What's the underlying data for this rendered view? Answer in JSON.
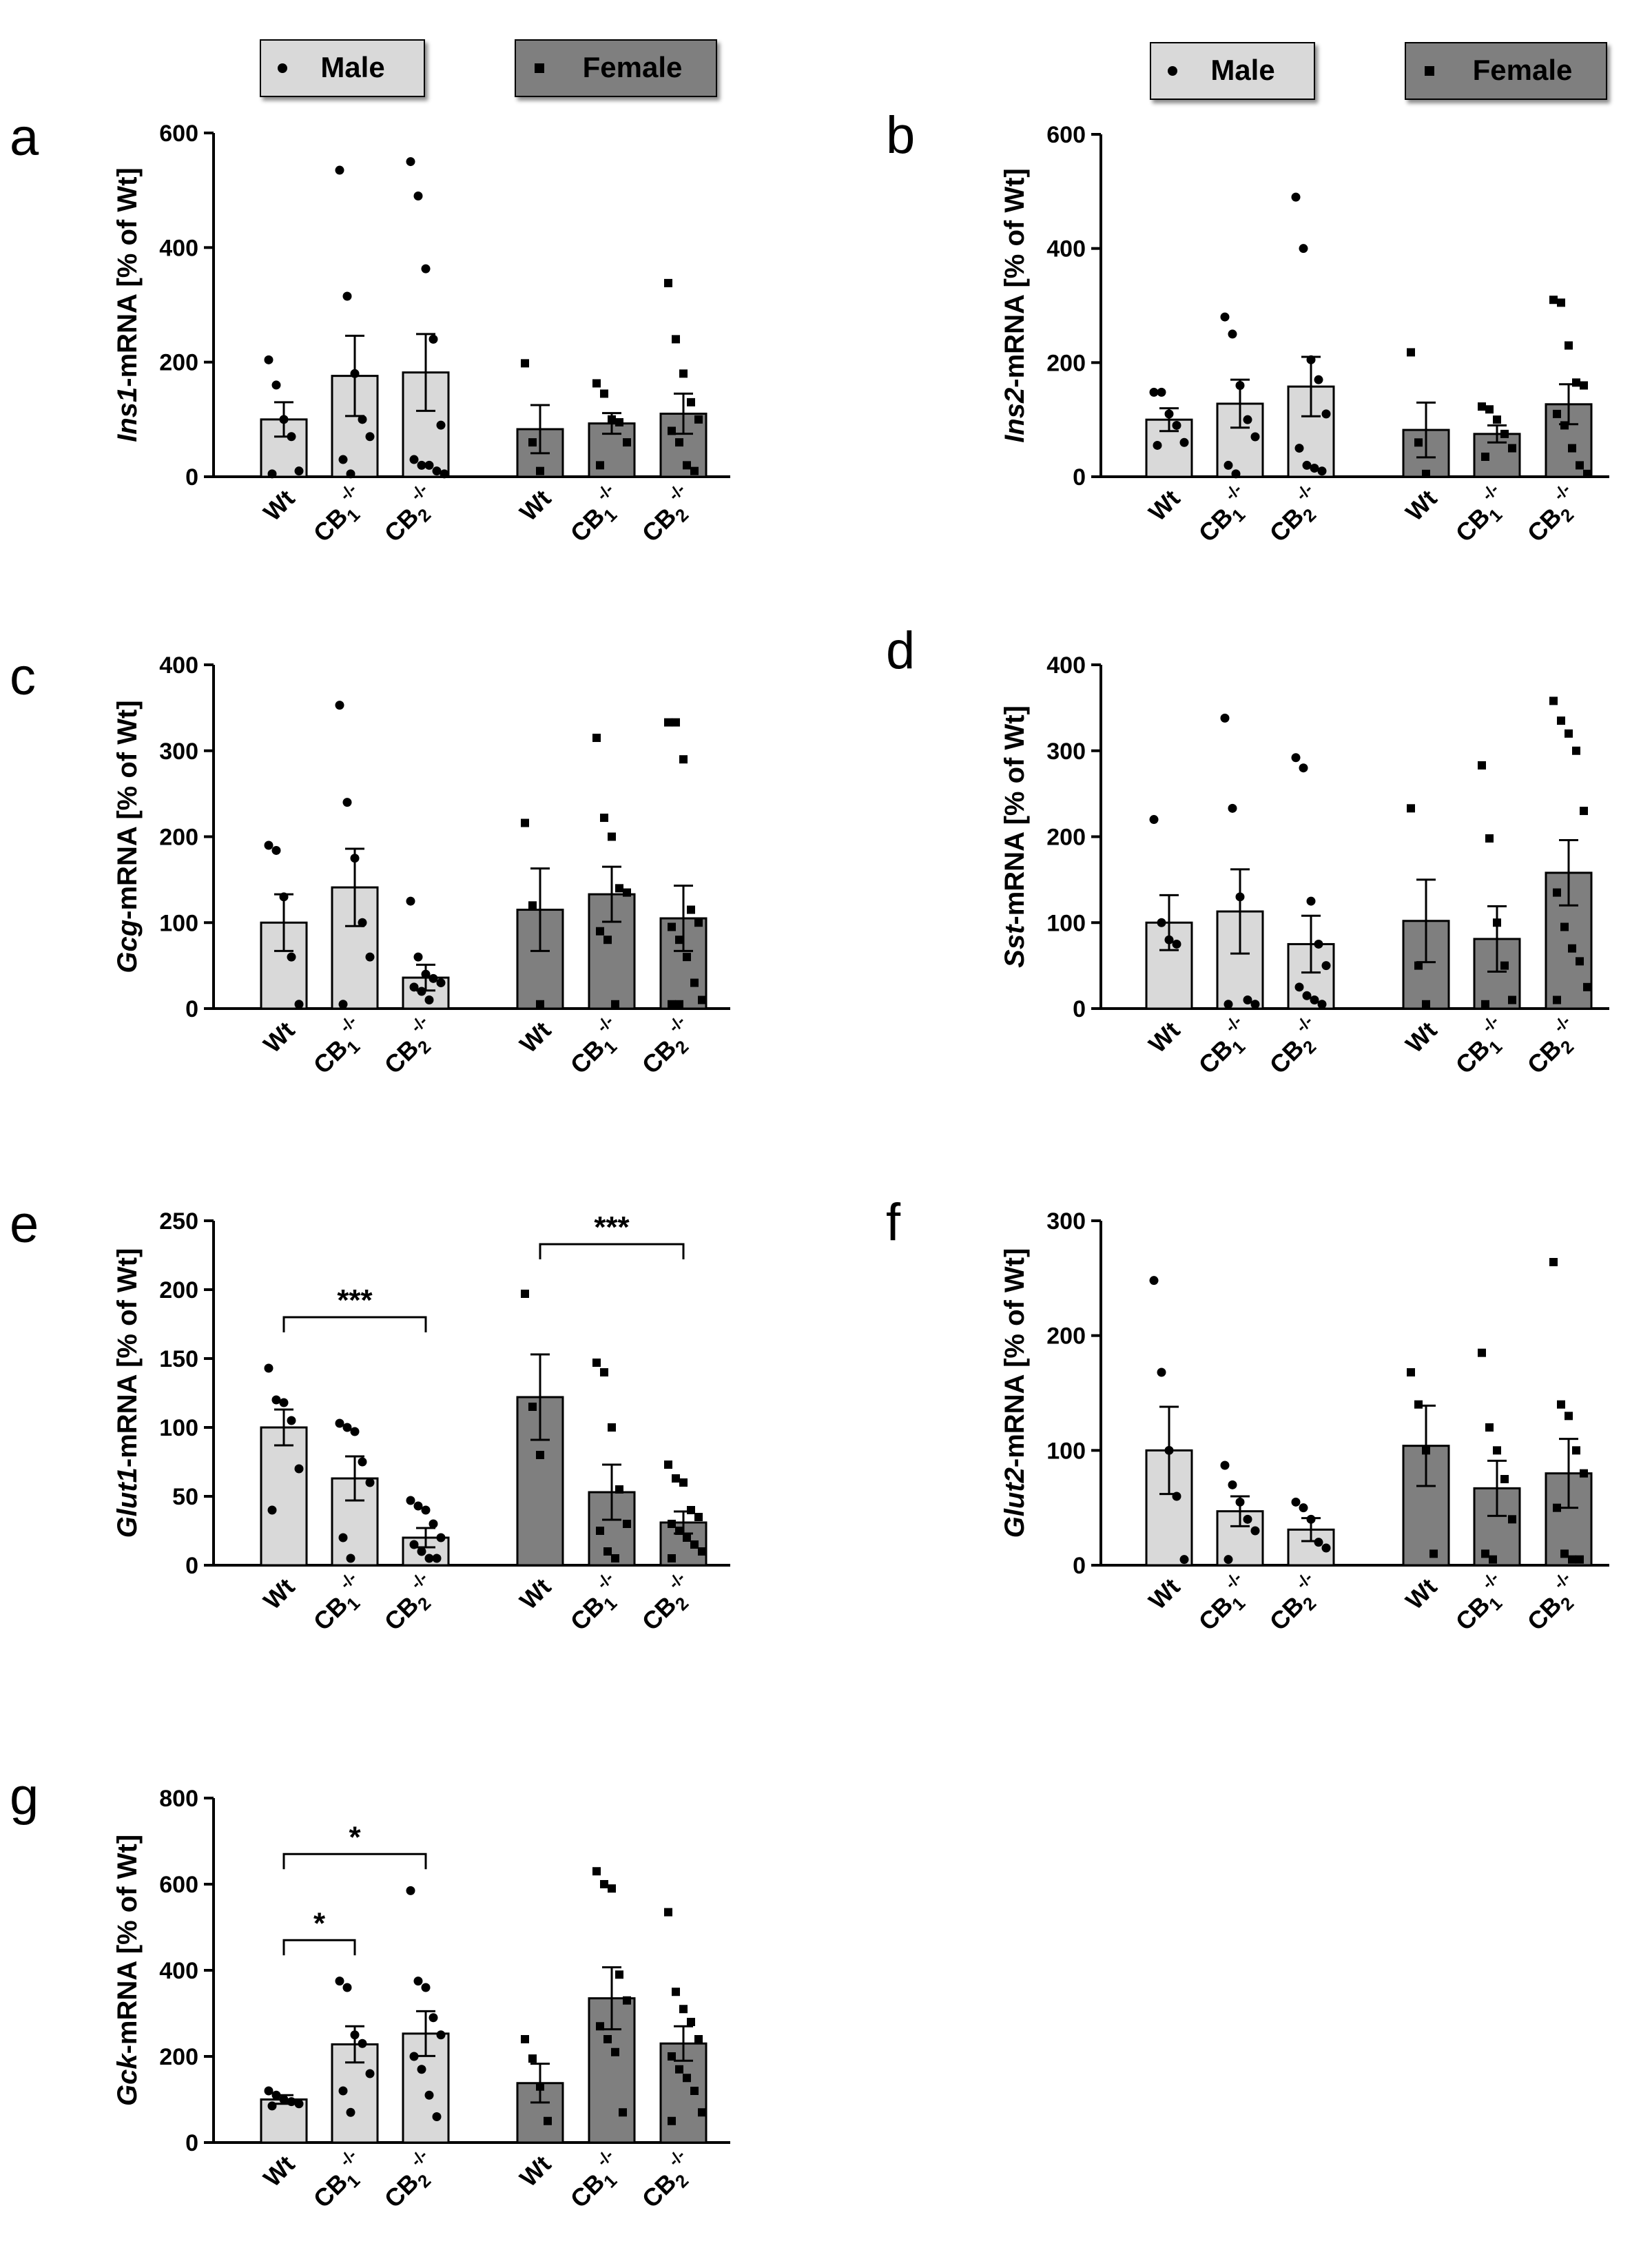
{
  "legends": [
    {
      "male_label": "Male",
      "female_label": "Female",
      "male_color": "#d9d9d9",
      "female_color": "#7f7f7f"
    },
    {
      "male_label": "Male",
      "female_label": "Female",
      "male_color": "#d9d9d9",
      "female_color": "#7f7f7f"
    }
  ],
  "colors": {
    "male_bar": "#d9d9d9",
    "female_bar": "#7f7f7f",
    "axis": "#000000",
    "point": "#000000"
  },
  "chart_data": [
    {
      "panel": "a",
      "type": "bar",
      "ylabel_italic": "Ins1",
      "ylabel_rest": "-mRNA [% of Wt]",
      "ylim": [
        0,
        600
      ],
      "yticks": [
        "0",
        "200",
        "400",
        "600"
      ],
      "categories": [
        "Wt",
        "CB1-/-",
        "CB2-/-"
      ],
      "series": [
        {
          "name": "Male",
          "values": [
            100,
            176,
            182
          ],
          "sem": [
            30,
            70,
            67
          ],
          "points": [
            [
              204,
              160,
              100,
              70,
              10,
              5
            ],
            [
              535,
              315,
              180,
              100,
              70,
              30,
              5
            ],
            [
              550,
              490,
              363,
              240,
              90,
              30,
              20,
              20,
              10,
              5
            ]
          ]
        },
        {
          "name": "Female",
          "values": [
            83,
            93,
            110
          ],
          "sem": [
            42,
            18,
            35
          ],
          "points": [
            [
              198,
              60,
              10
            ],
            [
              163,
              145,
              100,
              95,
              60,
              20
            ],
            [
              338,
              240,
              180,
              130,
              100,
              80,
              60,
              20,
              10
            ]
          ]
        }
      ],
      "significance": []
    },
    {
      "panel": "b",
      "type": "bar",
      "ylabel_italic": "Ins2",
      "ylabel_rest": "-mRNA [% of Wt]",
      "ylim": [
        0,
        600
      ],
      "yticks": [
        "0",
        "200",
        "400",
        "600"
      ],
      "categories": [
        "Wt",
        "CB1-/-",
        "CB2-/-"
      ],
      "series": [
        {
          "name": "Male",
          "values": [
            100,
            128,
            158
          ],
          "sem": [
            20,
            42,
            52
          ],
          "points": [
            [
              148,
              148,
              110,
              90,
              60,
              55
            ],
            [
              280,
              250,
              160,
              100,
              70,
              20,
              5
            ],
            [
              490,
              400,
              205,
              170,
              110,
              50,
              20,
              15,
              10
            ]
          ]
        },
        {
          "name": "Female",
          "values": [
            82,
            75,
            127
          ],
          "sem": [
            48,
            15,
            35
          ],
          "points": [
            [
              218,
              60,
              5
            ],
            [
              123,
              118,
              100,
              75,
              50,
              35
            ],
            [
              310,
              305,
              230,
              165,
              160,
              110,
              90,
              50,
              20,
              5
            ]
          ]
        }
      ],
      "significance": []
    },
    {
      "panel": "c",
      "type": "bar",
      "ylabel_italic": "Gcg",
      "ylabel_rest": "-mRNA [% of Wt]",
      "ylim": [
        0,
        400
      ],
      "yticks": [
        "0",
        "100",
        "200",
        "300",
        "400"
      ],
      "categories": [
        "Wt",
        "CB1-/-",
        "CB2-/-"
      ],
      "series": [
        {
          "name": "Male",
          "values": [
            100,
            141,
            36
          ],
          "sem": [
            33,
            45,
            15
          ],
          "points": [
            [
              190,
              184,
              130,
              60,
              5
            ],
            [
              353,
              240,
              175,
              100,
              60,
              5
            ],
            [
              125,
              60,
              40,
              35,
              30,
              25,
              20,
              10
            ]
          ]
        },
        {
          "name": "Female",
          "values": [
            115,
            133,
            105
          ],
          "sem": [
            48,
            32,
            38
          ],
          "points": [
            [
              216,
              120,
              5
            ],
            [
              315,
              222,
              200,
              140,
              135,
              90,
              80,
              5
            ],
            [
              333,
              333,
              290,
              115,
              100,
              95,
              80,
              60,
              30,
              10,
              5,
              5
            ]
          ]
        }
      ],
      "significance": []
    },
    {
      "panel": "d",
      "type": "bar",
      "ylabel_italic": "Sst",
      "ylabel_rest": "-mRNA [% of Wt]",
      "ylim": [
        0,
        400
      ],
      "yticks": [
        "0",
        "100",
        "200",
        "300",
        "400"
      ],
      "categories": [
        "Wt",
        "CB1-/-",
        "CB2-/-"
      ],
      "series": [
        {
          "name": "Male",
          "values": [
            100,
            113,
            75
          ],
          "sem": [
            32,
            49,
            33
          ],
          "points": [
            [
              220,
              100,
              80,
              75
            ],
            [
              338,
              233,
              130,
              10,
              5,
              5
            ],
            [
              292,
              280,
              125,
              75,
              50,
              25,
              15,
              10,
              5
            ]
          ]
        },
        {
          "name": "Female",
          "values": [
            102,
            81,
            158
          ],
          "sem": [
            48,
            38,
            38
          ],
          "points": [
            [
              233,
              50,
              5
            ],
            [
              283,
              198,
              100,
              50,
              10,
              5
            ],
            [
              358,
              335,
              320,
              300,
              230,
              135,
              95,
              70,
              55,
              25,
              10
            ]
          ]
        }
      ],
      "significance": []
    },
    {
      "panel": "e",
      "type": "bar",
      "ylabel_italic": "Glut1",
      "ylabel_rest": "-mRNA [% of Wt]",
      "ylim": [
        0,
        250
      ],
      "yticks": [
        "0",
        "50",
        "100",
        "150",
        "200",
        "250"
      ],
      "categories": [
        "Wt",
        "CB1-/-",
        "CB2-/-"
      ],
      "series": [
        {
          "name": "Male",
          "values": [
            100,
            63,
            20
          ],
          "sem": [
            13,
            16,
            7
          ],
          "points": [
            [
              143,
              120,
              118,
              105,
              70,
              40
            ],
            [
              103,
              100,
              97,
              75,
              60,
              20,
              5
            ],
            [
              47,
              43,
              40,
              30,
              20,
              15,
              10,
              5,
              5
            ]
          ]
        },
        {
          "name": "Female",
          "values": [
            122,
            53,
            31
          ],
          "sem": [
            31,
            20,
            8
          ],
          "points": [
            [
              197,
              115,
              80
            ],
            [
              147,
              140,
              100,
              55,
              30,
              25,
              10,
              5
            ],
            [
              73,
              63,
              60,
              40,
              35,
              30,
              25,
              20,
              15,
              10,
              5
            ]
          ]
        }
      ],
      "significance": [
        {
          "series": "Male",
          "from": 0,
          "to": 2,
          "label": "***",
          "level": 180
        },
        {
          "series": "Female",
          "from": 0,
          "to": 2,
          "label": "***",
          "level": 233
        }
      ]
    },
    {
      "panel": "f",
      "type": "bar",
      "ylabel_italic": "Glut2",
      "ylabel_rest": "-mRNA [% of Wt]",
      "ylim": [
        0,
        300
      ],
      "yticks": [
        "0",
        "100",
        "200",
        "300"
      ],
      "categories": [
        "Wt",
        "CB1-/-",
        "CB2-/-"
      ],
      "series": [
        {
          "name": "Male",
          "values": [
            100,
            47,
            31
          ],
          "sem": [
            38,
            13,
            10
          ],
          "points": [
            [
              248,
              168,
              100,
              60,
              5
            ],
            [
              87,
              70,
              55,
              40,
              30,
              5
            ],
            [
              55,
              50,
              40,
              20,
              15
            ]
          ]
        },
        {
          "name": "Female",
          "values": [
            104,
            67,
            80
          ],
          "sem": [
            35,
            24,
            30
          ],
          "points": [
            [
              168,
              140,
              100,
              10
            ],
            [
              185,
              120,
              100,
              75,
              40,
              10,
              5
            ],
            [
              264,
              140,
              130,
              100,
              80,
              50,
              10,
              5,
              5
            ]
          ]
        }
      ],
      "significance": []
    },
    {
      "panel": "g",
      "type": "bar",
      "ylabel_italic": "Gck",
      "ylabel_rest": "-mRNA [% of Wt]",
      "ylim": [
        0,
        800
      ],
      "yticks": [
        "0",
        "200",
        "400",
        "600",
        "800"
      ],
      "categories": [
        "Wt",
        "CB1-/-",
        "CB2-/-"
      ],
      "series": [
        {
          "name": "Male",
          "values": [
            100,
            228,
            253
          ],
          "sem": [
            10,
            42,
            52
          ],
          "points": [
            [
              120,
              110,
              100,
              95,
              90,
              85
            ],
            [
              375,
              360,
              250,
              230,
              160,
              120,
              70
            ],
            [
              585,
              375,
              360,
              290,
              250,
              200,
              170,
              110,
              60
            ]
          ]
        },
        {
          "name": "Female",
          "values": [
            138,
            335,
            230
          ],
          "sem": [
            45,
            72,
            40
          ],
          "points": [
            [
              240,
              195,
              130,
              50
            ],
            [
              630,
              600,
              590,
              390,
              330,
              270,
              240,
              210,
              70
            ],
            [
              535,
              350,
              310,
              280,
              240,
              200,
              170,
              150,
              120,
              70,
              50
            ]
          ]
        }
      ],
      "significance": [
        {
          "series": "Male",
          "from": 0,
          "to": 1,
          "label": "*",
          "level": 470
        },
        {
          "series": "Male",
          "from": 0,
          "to": 2,
          "label": "*",
          "level": 670
        }
      ]
    }
  ]
}
